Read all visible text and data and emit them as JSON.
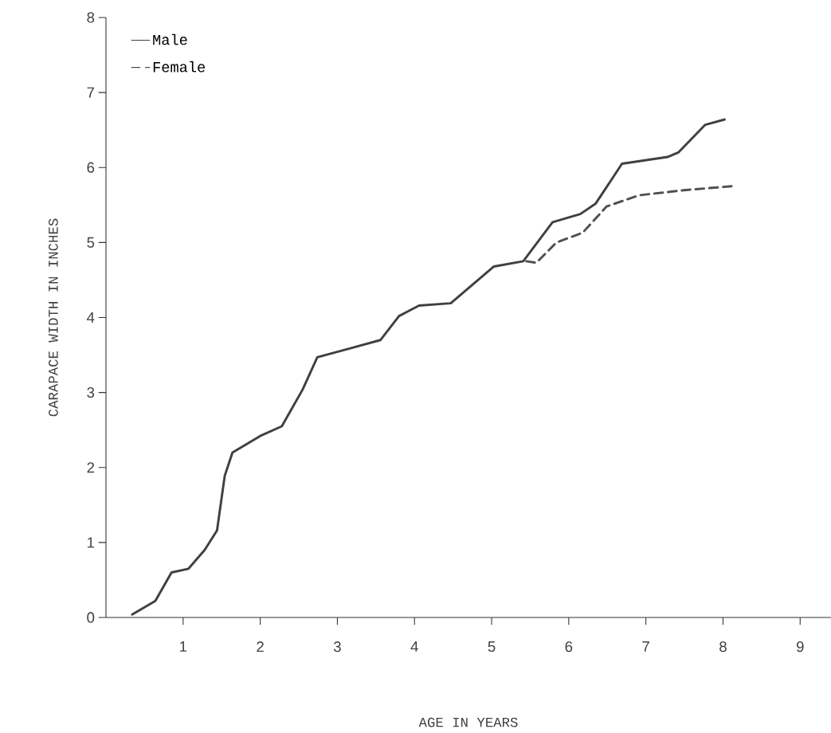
{
  "chart_data": {
    "type": "line",
    "xlabel": "AGE IN YEARS",
    "ylabel": "CARAPACE WIDTH IN INCHES",
    "xlim": [
      0,
      9.4
    ],
    "ylim": [
      0,
      8
    ],
    "xticks": [
      1,
      2,
      3,
      4,
      5,
      6,
      7,
      8,
      9
    ],
    "yticks": [
      0,
      1,
      2,
      3,
      4,
      5,
      6,
      7,
      8
    ],
    "grid": false,
    "legend": "top left",
    "marker": "none",
    "series": [
      {
        "name": "Male",
        "color": "#404040",
        "line_style": "solid",
        "x": [
          0.34,
          0.64,
          0.85,
          1.07,
          1.28,
          1.44,
          1.54,
          1.64,
          2.0,
          2.28,
          2.55,
          2.74,
          3.17,
          3.56,
          3.8,
          4.06,
          4.47,
          5.03,
          5.41,
          5.79,
          6.15,
          6.35,
          6.69,
          7.28,
          7.42,
          7.77,
          8.02
        ],
        "values": [
          0.04,
          0.22,
          0.6,
          0.65,
          0.9,
          1.16,
          1.89,
          2.2,
          2.42,
          2.55,
          3.04,
          3.47,
          3.59,
          3.7,
          4.02,
          4.16,
          4.19,
          4.68,
          4.75,
          5.27,
          5.38,
          5.52,
          6.05,
          6.14,
          6.2,
          6.57,
          6.64
        ]
      },
      {
        "name": "Female",
        "color": "#505050",
        "line_style": "dashed",
        "x": [
          5.45,
          5.58,
          5.84,
          6.18,
          6.49,
          6.91,
          7.52,
          8.11
        ],
        "values": [
          4.75,
          4.73,
          5.0,
          5.13,
          5.48,
          5.63,
          5.7,
          5.75
        ]
      }
    ]
  }
}
